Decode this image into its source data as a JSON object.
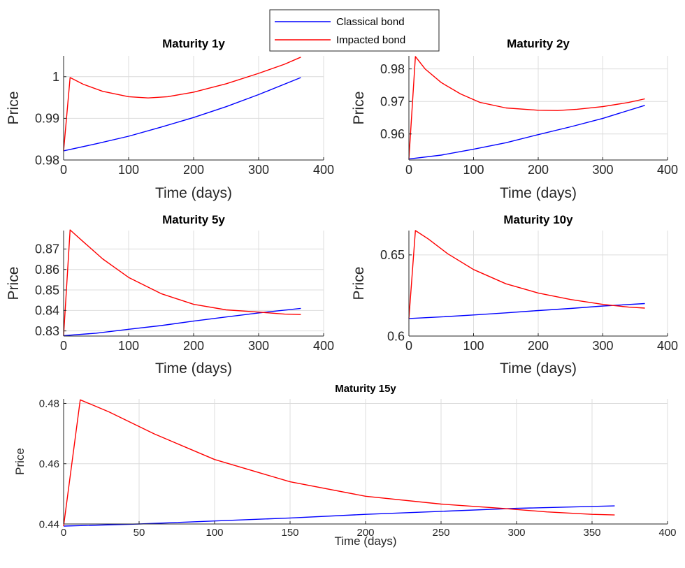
{
  "legend": {
    "items": [
      {
        "label": "Classical bond",
        "color": "#0000ff"
      },
      {
        "label": "Impacted bond",
        "color": "#ff0000"
      }
    ]
  },
  "chart_data": [
    {
      "type": "line",
      "title": "Maturity 1y",
      "xlabel": "Time (days)",
      "ylabel": "Price",
      "xlim": [
        0,
        400
      ],
      "ylim": [
        0.98,
        1.005
      ],
      "xticks": [
        0,
        100,
        200,
        300,
        400
      ],
      "yticks": [
        0.98,
        0.99,
        1
      ],
      "grid": true,
      "series": [
        {
          "name": "Classical bond",
          "color": "#0000ff",
          "x": [
            0,
            50,
            100,
            150,
            200,
            250,
            300,
            365
          ],
          "y": [
            0.9822,
            0.9839,
            0.9857,
            0.9879,
            0.9902,
            0.9928,
            0.9957,
            0.9998
          ]
        },
        {
          "name": "Impacted bond",
          "color": "#ff0000",
          "x": [
            0,
            10,
            30,
            60,
            100,
            130,
            160,
            200,
            250,
            300,
            340,
            365
          ],
          "y": [
            0.9822,
            0.9998,
            0.9982,
            0.9965,
            0.9952,
            0.9949,
            0.9952,
            0.9963,
            0.9983,
            1.0008,
            1.003,
            1.0047
          ]
        }
      ]
    },
    {
      "type": "line",
      "title": "Maturity 2y",
      "xlabel": "Time (days)",
      "ylabel": "Price",
      "xlim": [
        0,
        400
      ],
      "ylim": [
        0.952,
        0.984
      ],
      "xticks": [
        0,
        100,
        200,
        300,
        400
      ],
      "yticks": [
        0.96,
        0.97,
        0.98
      ],
      "grid": true,
      "series": [
        {
          "name": "Classical bond",
          "color": "#0000ff",
          "x": [
            0,
            50,
            100,
            150,
            200,
            250,
            300,
            365
          ],
          "y": [
            0.9523,
            0.9535,
            0.9553,
            0.9573,
            0.9598,
            0.9622,
            0.9648,
            0.9688
          ]
        },
        {
          "name": "Impacted bond",
          "color": "#ff0000",
          "x": [
            0,
            10,
            25,
            50,
            80,
            110,
            150,
            200,
            230,
            260,
            300,
            340,
            365
          ],
          "y": [
            0.9523,
            0.9838,
            0.98,
            0.9758,
            0.9723,
            0.9697,
            0.968,
            0.9673,
            0.9672,
            0.9676,
            0.9684,
            0.9697,
            0.9708
          ]
        }
      ]
    },
    {
      "type": "line",
      "title": "Maturity 5y",
      "xlabel": "Time (days)",
      "ylabel": "Price",
      "xlim": [
        0,
        400
      ],
      "ylim": [
        0.8275,
        0.879
      ],
      "xticks": [
        0,
        100,
        200,
        300,
        400
      ],
      "yticks": [
        0.83,
        0.84,
        0.85,
        0.86,
        0.87
      ],
      "grid": true,
      "series": [
        {
          "name": "Classical bond",
          "color": "#0000ff",
          "x": [
            0,
            50,
            100,
            150,
            200,
            250,
            300,
            365
          ],
          "y": [
            0.8277,
            0.8289,
            0.8308,
            0.8326,
            0.8348,
            0.8368,
            0.8388,
            0.841
          ]
        },
        {
          "name": "Impacted bond",
          "color": "#ff0000",
          "x": [
            0,
            10,
            30,
            60,
            100,
            150,
            200,
            250,
            300,
            340,
            365
          ],
          "y": [
            0.8277,
            0.8793,
            0.8736,
            0.8652,
            0.8561,
            0.8482,
            0.843,
            0.8403,
            0.8392,
            0.8382,
            0.838
          ]
        }
      ]
    },
    {
      "type": "line",
      "title": "Maturity 10y",
      "xlabel": "Time (days)",
      "ylabel": "Price",
      "xlim": [
        0,
        400
      ],
      "ylim": [
        0.6,
        0.665
      ],
      "xticks": [
        0,
        100,
        200,
        300,
        400
      ],
      "yticks": [
        0.6,
        0.65
      ],
      "grid": true,
      "series": [
        {
          "name": "Classical bond",
          "color": "#0000ff",
          "x": [
            0,
            50,
            100,
            150,
            200,
            250,
            300,
            365
          ],
          "y": [
            0.6108,
            0.6118,
            0.613,
            0.6143,
            0.6157,
            0.617,
            0.6185,
            0.62
          ]
        },
        {
          "name": "Impacted bond",
          "color": "#ff0000",
          "x": [
            0,
            10,
            30,
            60,
            100,
            150,
            200,
            250,
            300,
            340,
            365
          ],
          "y": [
            0.6108,
            0.665,
            0.6598,
            0.6507,
            0.641,
            0.6322,
            0.6265,
            0.6225,
            0.6195,
            0.6178,
            0.6172
          ]
        }
      ]
    },
    {
      "type": "line",
      "title": "Maturity 15y",
      "xlabel": "Time (days)",
      "ylabel": "Price",
      "xlim": [
        0,
        400
      ],
      "ylim": [
        0.44,
        0.4815
      ],
      "xticks": [
        0,
        50,
        100,
        150,
        200,
        250,
        300,
        350,
        400
      ],
      "yticks": [
        0.44,
        0.46,
        0.48
      ],
      "grid": true,
      "series": [
        {
          "name": "Classical bond",
          "color": "#0000ff",
          "x": [
            0,
            50,
            100,
            150,
            200,
            250,
            300,
            365
          ],
          "y": [
            0.4393,
            0.44,
            0.441,
            0.442,
            0.4432,
            0.4442,
            0.4452,
            0.446
          ]
        },
        {
          "name": "Impacted bond",
          "color": "#ff0000",
          "x": [
            0,
            11,
            30,
            60,
            100,
            150,
            200,
            250,
            290,
            320,
            350,
            365
          ],
          "y": [
            0.4393,
            0.4812,
            0.4772,
            0.4699,
            0.4614,
            0.454,
            0.4492,
            0.4466,
            0.4452,
            0.444,
            0.4432,
            0.443
          ]
        }
      ]
    }
  ]
}
